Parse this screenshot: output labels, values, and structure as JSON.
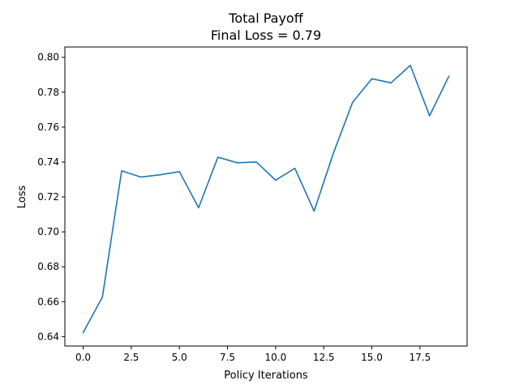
{
  "chart_data": {
    "type": "line",
    "title": "Total Payoff",
    "subtitle": "Final Loss = 0.79",
    "xlabel": "Policy Iterations",
    "ylabel": "Loss",
    "xlim": [
      -0.95,
      19.95
    ],
    "ylim": [
      0.6346,
      0.8059
    ],
    "xticks": [
      0.0,
      2.5,
      5.0,
      7.5,
      10.0,
      12.5,
      15.0,
      17.5
    ],
    "xtick_labels": [
      "0.0",
      "2.5",
      "5.0",
      "7.5",
      "10.0",
      "12.5",
      "15.0",
      "17.5"
    ],
    "yticks": [
      0.64,
      0.66,
      0.68,
      0.7,
      0.72,
      0.74,
      0.76,
      0.78,
      0.8
    ],
    "ytick_labels": [
      "0.64",
      "0.66",
      "0.68",
      "0.70",
      "0.72",
      "0.74",
      "0.76",
      "0.78",
      "0.80"
    ],
    "grid": false,
    "series": [
      {
        "color": "#1f77b4",
        "x": [
          0,
          1,
          2,
          3,
          4,
          5,
          6,
          7,
          8,
          9,
          10,
          11,
          12,
          13,
          14,
          15,
          16,
          17,
          18,
          19
        ],
        "values": [
          0.6423,
          0.6627,
          0.735,
          0.7314,
          0.7327,
          0.7345,
          0.7138,
          0.7428,
          0.7396,
          0.74,
          0.7296,
          0.7364,
          0.7119,
          0.745,
          0.7742,
          0.7877,
          0.7854,
          0.7954,
          0.7665,
          0.7891
        ]
      }
    ]
  }
}
